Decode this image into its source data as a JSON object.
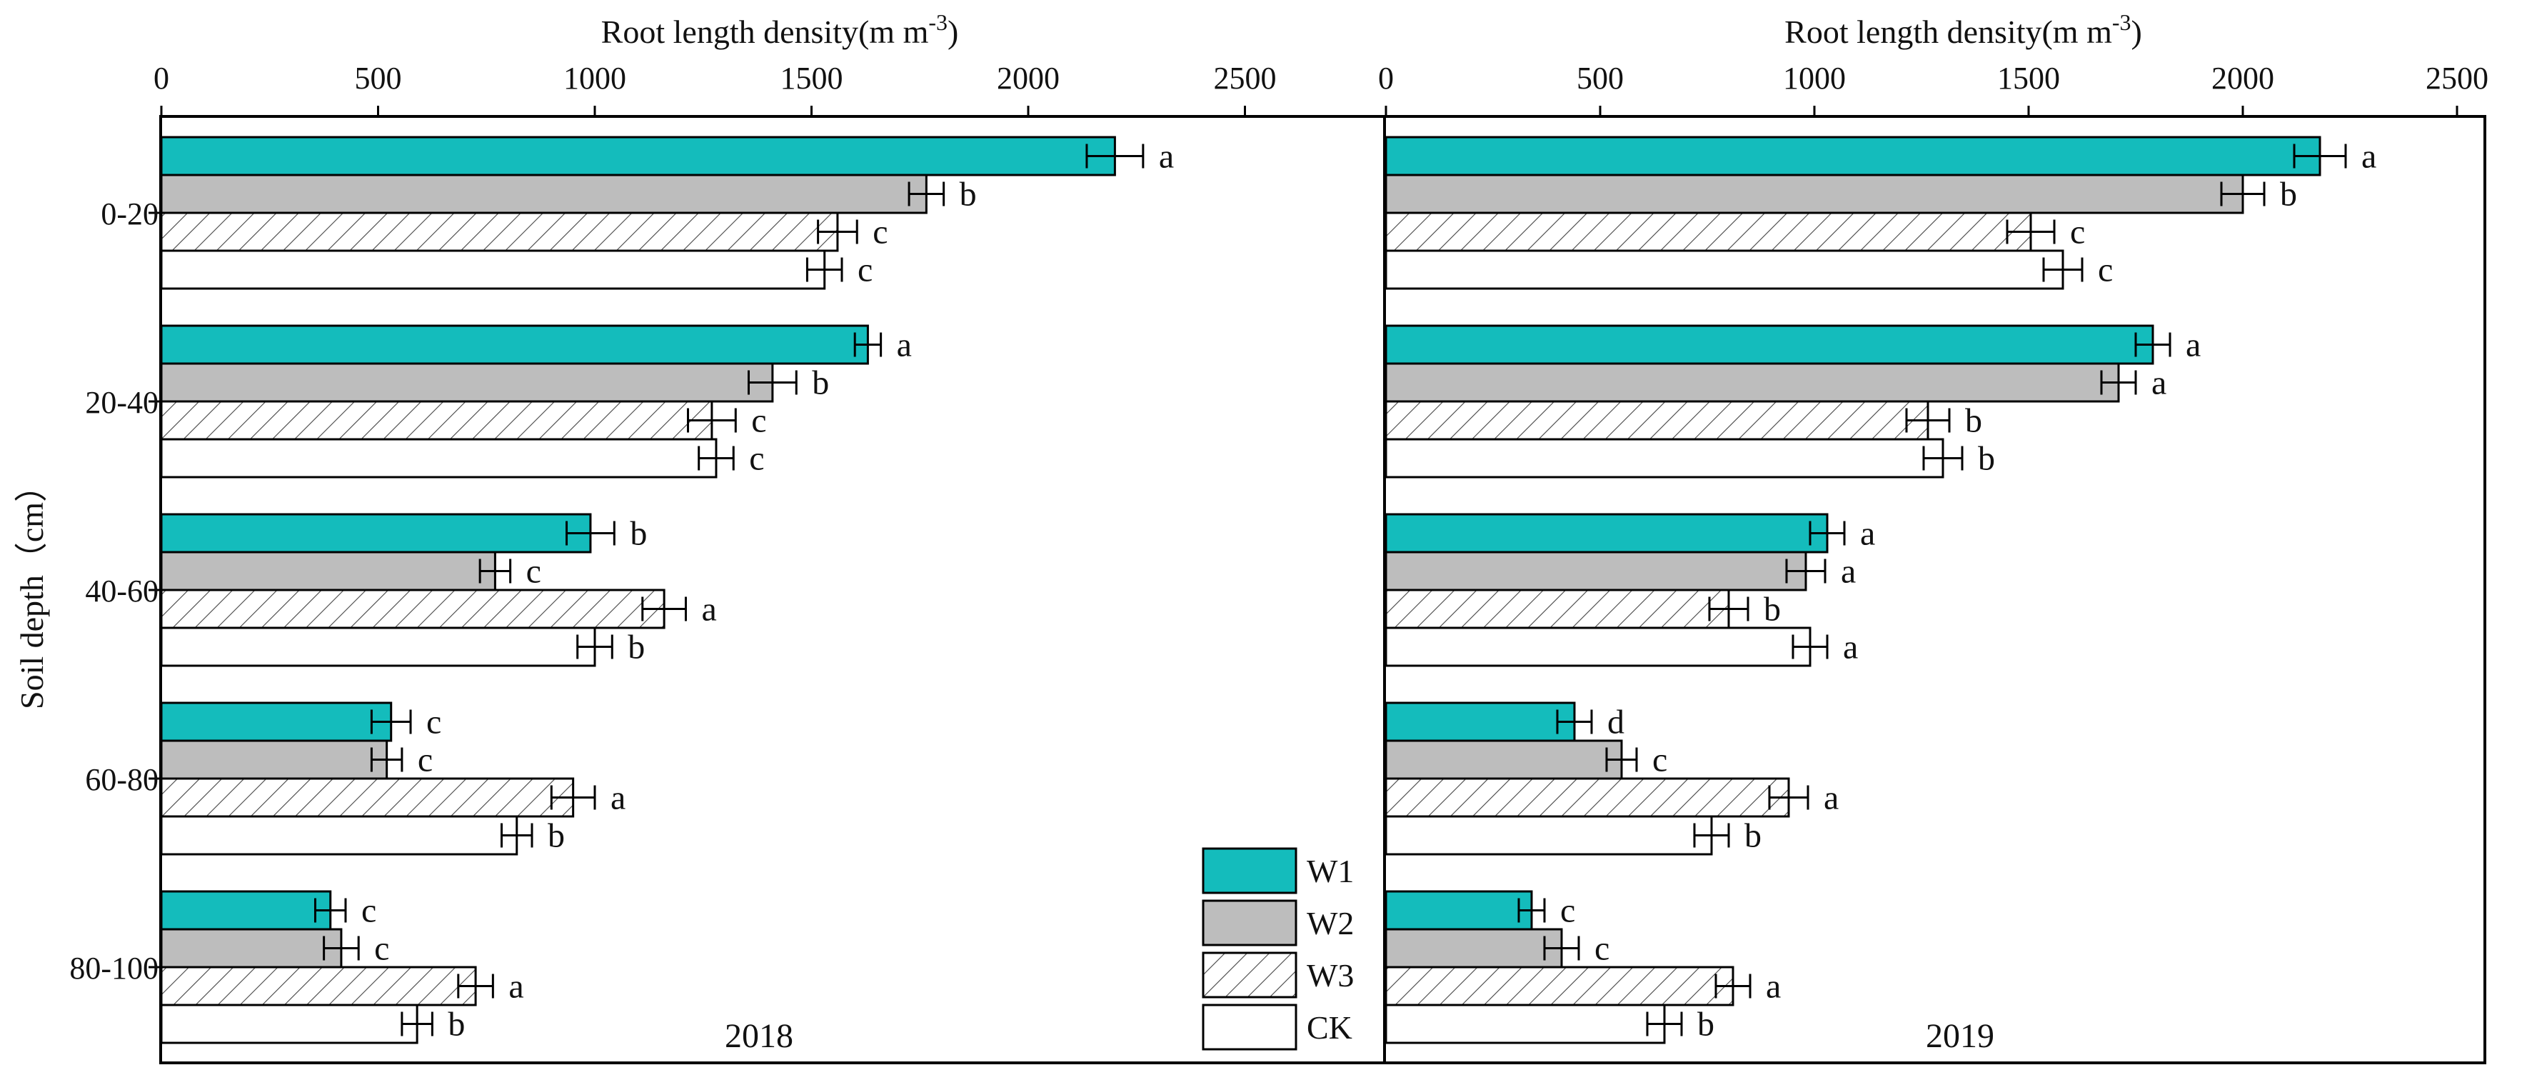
{
  "chart_data": {
    "type": "bar",
    "orientation": "horizontal",
    "ylabel": "Soil depth（cm）",
    "categories": [
      "0-20",
      "20-40",
      "40-60",
      "60-80",
      "80-100"
    ],
    "legend": {
      "placement": "bottom-center",
      "entries": [
        {
          "name": "W1",
          "fill": "#14bcbc",
          "pattern": "solid"
        },
        {
          "name": "W2",
          "fill": "#bdbdbd",
          "pattern": "solid"
        },
        {
          "name": "W3",
          "fill": "#ffffff",
          "pattern": "hatch"
        },
        {
          "name": "CK",
          "fill": "#ffffff",
          "pattern": "none"
        }
      ]
    },
    "panels": [
      {
        "label": "2018",
        "xlabel": "Root length density(m m",
        "xlabel_superscript": "-3",
        "xlabel_suffix": ")",
        "xlim": [
          0,
          2700
        ],
        "xticks": [
          "0",
          "500",
          "1000",
          "1500",
          "2000",
          "2500"
        ],
        "xtick_values": [
          0,
          500,
          1000,
          1500,
          2000,
          2500
        ],
        "series": [
          {
            "name": "W1",
            "values": [
              2200,
              1630,
              990,
              530,
              390
            ],
            "errors": [
              65,
              30,
              55,
              45,
              35
            ],
            "letters": [
              "a",
              "a",
              "b",
              "c",
              "c"
            ]
          },
          {
            "name": "W2",
            "values": [
              1765,
              1410,
              770,
              520,
              415
            ],
            "errors": [
              40,
              55,
              35,
              35,
              40
            ],
            "letters": [
              "b",
              "b",
              "c",
              "c",
              "c"
            ]
          },
          {
            "name": "W3",
            "values": [
              1560,
              1270,
              1160,
              950,
              725
            ],
            "errors": [
              45,
              55,
              50,
              50,
              40
            ],
            "letters": [
              "c",
              "c",
              "a",
              "a",
              "a"
            ]
          },
          {
            "name": "CK",
            "values": [
              1530,
              1280,
              1000,
              820,
              590
            ],
            "errors": [
              40,
              40,
              40,
              35,
              35
            ],
            "letters": [
              "c",
              "c",
              "b",
              "b",
              "b"
            ]
          }
        ]
      },
      {
        "label": "2019",
        "xlabel": "Root length density(m m",
        "xlabel_superscript": "-3",
        "xlabel_suffix": ")",
        "xlim": [
          0,
          2500
        ],
        "xticks": [
          "0",
          "500",
          "1000",
          "1500",
          "2000",
          "2500"
        ],
        "xtick_values": [
          0,
          500,
          1000,
          1500,
          2000,
          2500
        ],
        "series": [
          {
            "name": "W1",
            "values": [
              2180,
              1790,
              1030,
              440,
              340
            ],
            "errors": [
              60,
              40,
              40,
              40,
              30
            ],
            "letters": [
              "a",
              "a",
              "a",
              "d",
              "c"
            ]
          },
          {
            "name": "W2",
            "values": [
              2000,
              1710,
              980,
              550,
              410
            ],
            "errors": [
              50,
              40,
              45,
              35,
              40
            ],
            "letters": [
              "b",
              "a",
              "a",
              "c",
              "c"
            ]
          },
          {
            "name": "W3",
            "values": [
              1505,
              1265,
              800,
              940,
              810
            ],
            "errors": [
              55,
              50,
              45,
              45,
              40
            ],
            "letters": [
              "c",
              "b",
              "b",
              "a",
              "a"
            ]
          },
          {
            "name": "CK",
            "values": [
              1580,
              1300,
              990,
              760,
              650
            ],
            "errors": [
              45,
              45,
              40,
              40,
              40
            ],
            "letters": [
              "c",
              "b",
              "a",
              "b",
              "b"
            ]
          }
        ]
      }
    ]
  }
}
